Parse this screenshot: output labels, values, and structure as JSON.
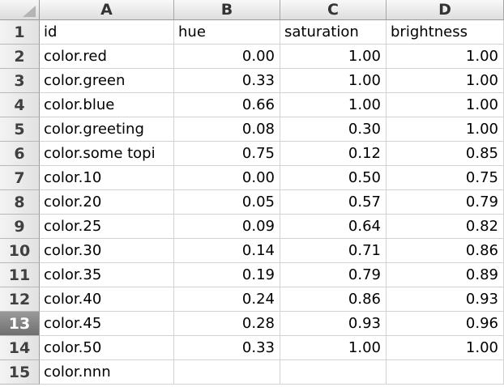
{
  "sheet": {
    "columns": [
      "A",
      "B",
      "C",
      "D"
    ],
    "rows": [
      {
        "num": "1",
        "cells": [
          "id",
          "hue",
          "saturation",
          "brightness"
        ],
        "header": true
      },
      {
        "num": "2",
        "cells": [
          "color.red",
          "0.00",
          "1.00",
          "1.00"
        ]
      },
      {
        "num": "3",
        "cells": [
          "color.green",
          "0.33",
          "1.00",
          "1.00"
        ]
      },
      {
        "num": "4",
        "cells": [
          "color.blue",
          "0.66",
          "1.00",
          "1.00"
        ]
      },
      {
        "num": "5",
        "cells": [
          "color.greeting",
          "0.08",
          "0.30",
          "1.00"
        ]
      },
      {
        "num": "6",
        "cells": [
          "color.some topi",
          "0.75",
          "0.12",
          "0.85"
        ]
      },
      {
        "num": "7",
        "cells": [
          "color.10",
          "0.00",
          "0.50",
          "0.75"
        ]
      },
      {
        "num": "8",
        "cells": [
          "color.20",
          "0.05",
          "0.57",
          "0.79"
        ]
      },
      {
        "num": "9",
        "cells": [
          "color.25",
          "0.09",
          "0.64",
          "0.82"
        ]
      },
      {
        "num": "10",
        "cells": [
          "color.30",
          "0.14",
          "0.71",
          "0.86"
        ]
      },
      {
        "num": "11",
        "cells": [
          "color.35",
          "0.19",
          "0.79",
          "0.89"
        ]
      },
      {
        "num": "12",
        "cells": [
          "color.40",
          "0.24",
          "0.86",
          "0.93"
        ]
      },
      {
        "num": "13",
        "cells": [
          "color.45",
          "0.28",
          "0.93",
          "0.96"
        ],
        "selected": true
      },
      {
        "num": "14",
        "cells": [
          "color.50",
          "0.33",
          "1.00",
          "1.00"
        ]
      },
      {
        "num": "15",
        "cells": [
          "color.nnn",
          "",
          "",
          ""
        ]
      }
    ]
  }
}
